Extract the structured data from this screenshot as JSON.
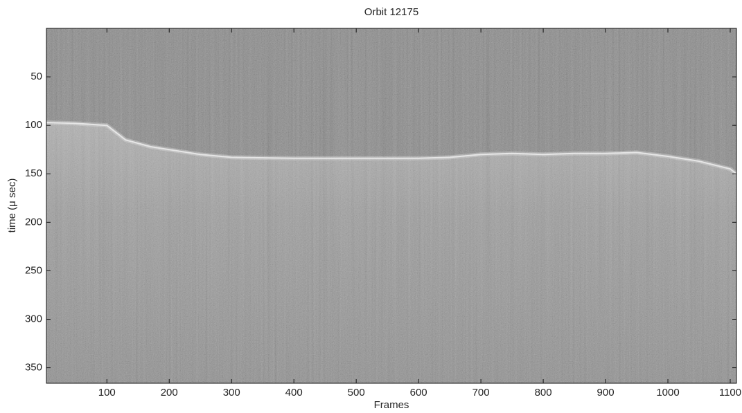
{
  "chart_data": {
    "type": "radargram",
    "title": "Orbit 12175",
    "x_label": "Frames",
    "y_label": "time (μ sec)",
    "x": [
      3,
      50,
      100,
      110,
      130,
      170,
      200,
      250,
      300,
      400,
      500,
      600,
      650,
      700,
      750,
      800,
      850,
      900,
      950,
      1000,
      1050,
      1100,
      1110
    ],
    "values": [
      97,
      98,
      100,
      105,
      115,
      122,
      125,
      130,
      133,
      134,
      134,
      134,
      133,
      130,
      129,
      130,
      129,
      129,
      128,
      132,
      137,
      145,
      150
    ],
    "color": "#e6e6e6",
    "xlim": [
      3,
      1110
    ],
    "xticks": [
      100,
      200,
      300,
      400,
      500,
      600,
      700,
      800,
      900,
      1000,
      1100
    ],
    "ylim": [
      0,
      366
    ],
    "yticks": [
      50,
      100,
      150,
      200,
      250,
      300,
      350
    ],
    "y_reversed": true
  }
}
